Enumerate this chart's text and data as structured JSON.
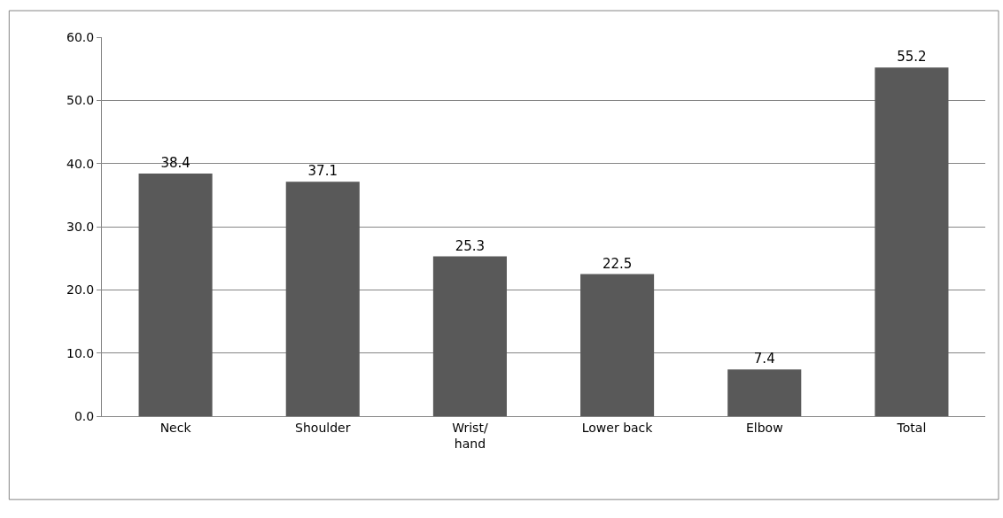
{
  "chart_data": {
    "type": "bar",
    "categories": [
      "Neck",
      "Shoulder",
      "Wrist/\nhand",
      "Lower back",
      "Elbow",
      "Total"
    ],
    "values": [
      38.4,
      37.1,
      25.3,
      22.5,
      7.4,
      55.2
    ],
    "color": "#595959",
    "ylim": [
      0,
      60
    ],
    "yticks": [
      {
        "value": 0,
        "label": "0.0"
      },
      {
        "value": 10,
        "label": "10.0"
      },
      {
        "value": 20,
        "label": "20.0"
      },
      {
        "value": 30,
        "label": "30.0"
      },
      {
        "value": 40,
        "label": "40.0"
      },
      {
        "value": 50,
        "label": "50.0"
      },
      {
        "value": 60,
        "label": "60.0"
      }
    ],
    "grid": "y",
    "data_labels": true
  }
}
